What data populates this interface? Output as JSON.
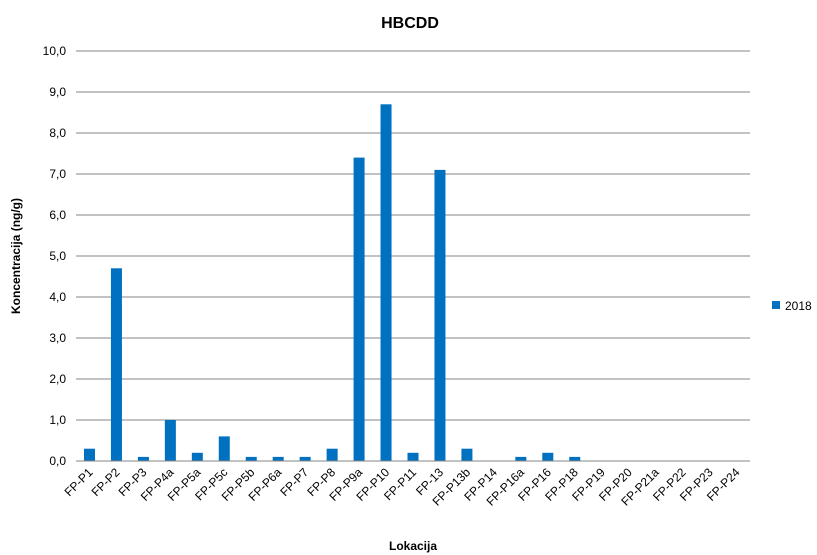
{
  "chart_data": {
    "type": "bar",
    "title": "HBCDD",
    "xlabel": "Lokacija",
    "ylabel": "Koncentracija (ng/g)",
    "ylim": [
      0,
      10
    ],
    "yticks": [
      "0,0",
      "1,0",
      "2,0",
      "3,0",
      "4,0",
      "5,0",
      "6,0",
      "7,0",
      "8,0",
      "9,0",
      "10,0"
    ],
    "grid": true,
    "legend_position": "right",
    "categories": [
      "FP-P1",
      "FP-P2",
      "FP-P3",
      "FP-P4a",
      "FP-P5a",
      "FP-P5c",
      "FP-P5b",
      "FP-P6a",
      "FP-P7",
      "FP-P8",
      "FP-P9a",
      "FP-P10",
      "FP-P11",
      "FP-13",
      "FP-P13b",
      "FP-P14",
      "FP-P16a",
      "FP-P16",
      "FP-P18",
      "FP-P19",
      "FP-P20",
      "FP-P21a",
      "FP-P22",
      "FP-P23",
      "FP-P24"
    ],
    "series": [
      {
        "name": "2018",
        "color": "#0070c0",
        "values": [
          0.3,
          4.7,
          0.1,
          1.0,
          0.2,
          0.6,
          0.1,
          0.1,
          0.1,
          0.3,
          7.4,
          8.7,
          0.2,
          7.1,
          0.3,
          0.0,
          0.1,
          0.2,
          0.1,
          0.0,
          0.0,
          0.0,
          0.0,
          0.0,
          0.0
        ]
      }
    ]
  }
}
